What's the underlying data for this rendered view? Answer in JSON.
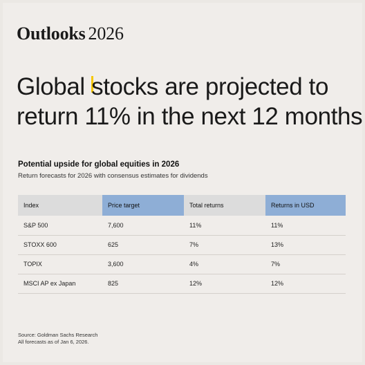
{
  "brand": {
    "bold": "Outlooks",
    "light": "2026"
  },
  "headline": {
    "line1_pre": "Global ",
    "line1_post": "stocks are projected to",
    "line2": "return 11% in the next 12 months"
  },
  "colors": {
    "background": "#f0edea",
    "highlight_header": "#8eaed6",
    "header": "#dcdcdc",
    "cursor": "#f6c700"
  },
  "chart_data": {
    "type": "table",
    "title": "Potential upside for global equities in 2026",
    "subtitle": "Return forecasts for 2026 with consensus estimates for dividends",
    "columns": [
      "Index",
      "Price target",
      "Total returns",
      "Returns in USD"
    ],
    "highlighted_columns": [
      1,
      3
    ],
    "rows": [
      [
        "S&P 500",
        "7,600",
        "11%",
        "11%"
      ],
      [
        "STOXX 600",
        "625",
        "7%",
        "13%"
      ],
      [
        "TOPIX",
        "3,600",
        "4%",
        "7%"
      ],
      [
        "MSCI AP ex Japan",
        "825",
        "12%",
        "12%"
      ]
    ]
  },
  "footer": {
    "source": "Source: Goldman Sachs Research",
    "note": "All forecasts as of Jan 6, 2026."
  }
}
